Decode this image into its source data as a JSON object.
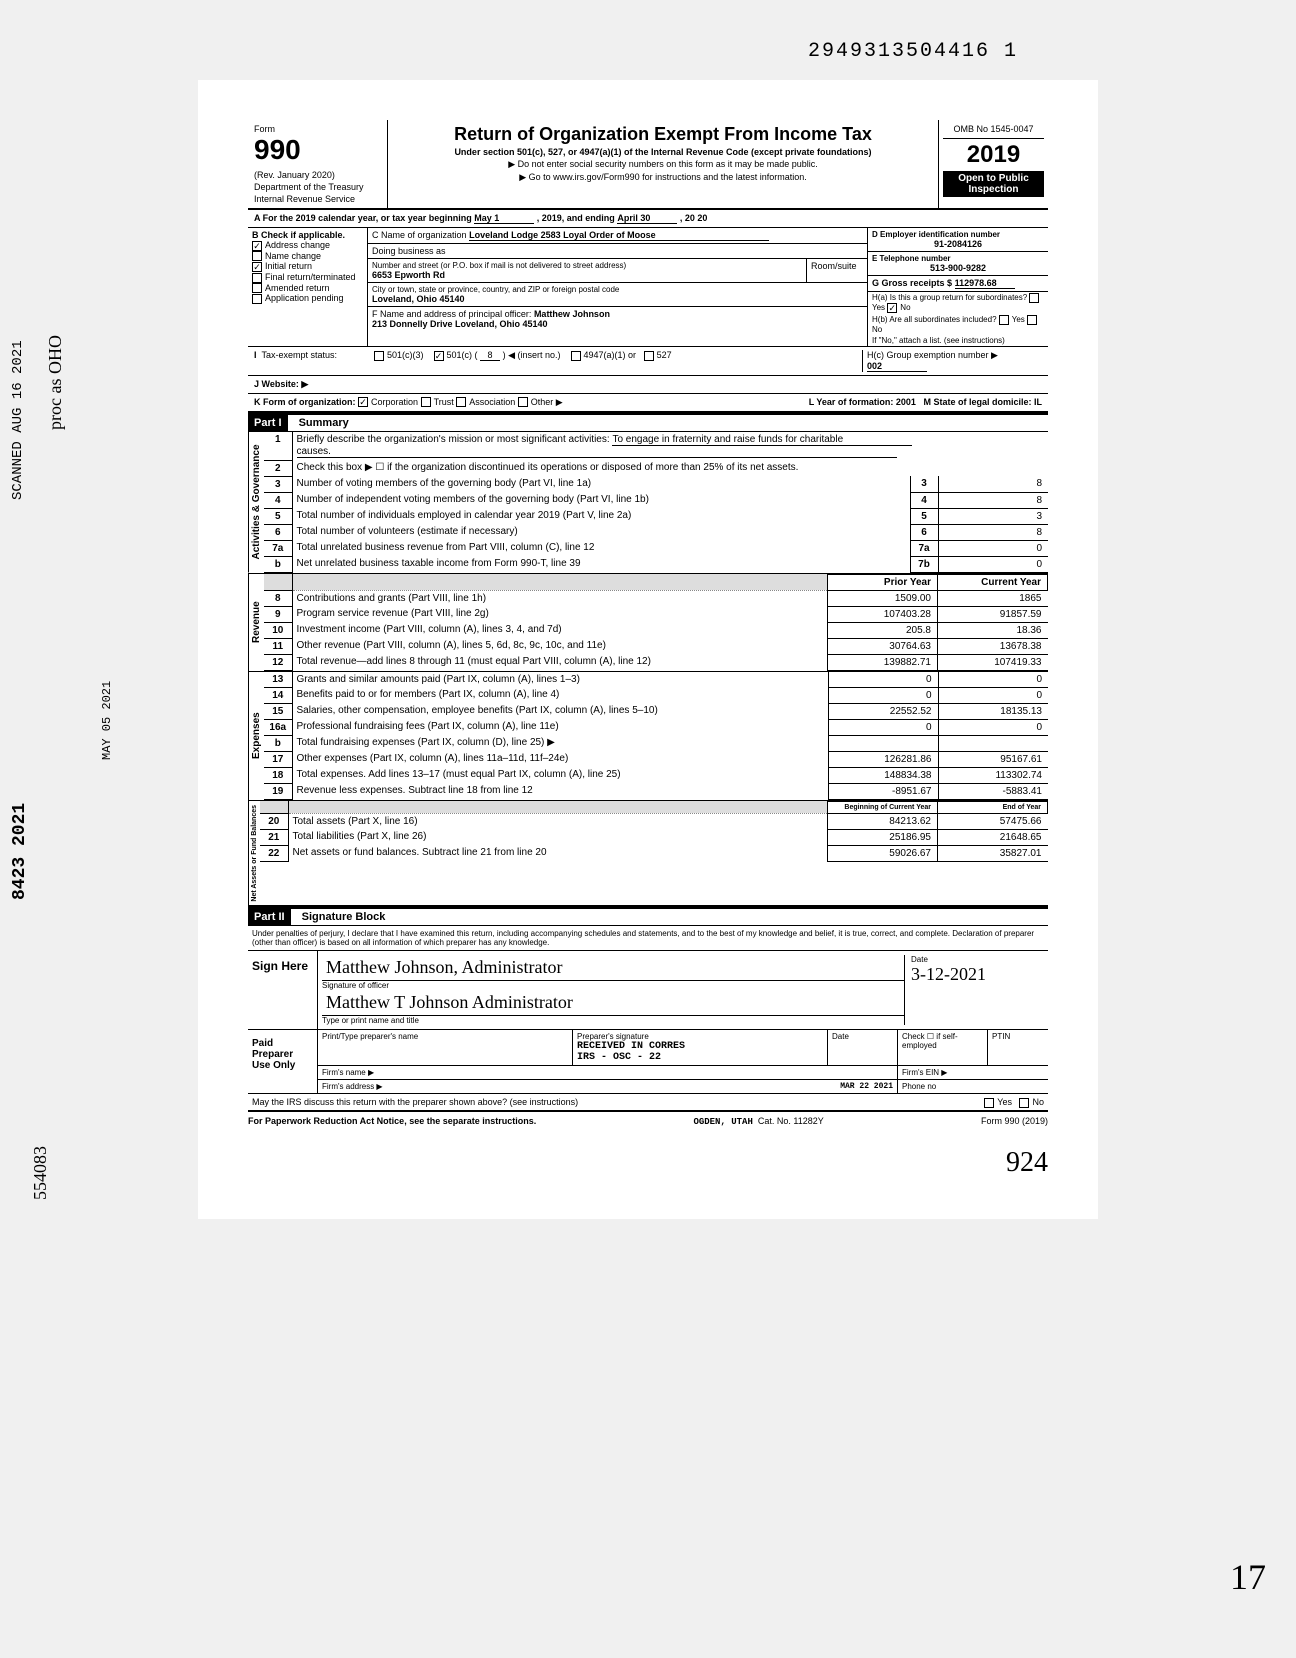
{
  "top_doc_number": "2949313504416 1",
  "form": {
    "number": "990",
    "rev": "(Rev. January 2020)",
    "dept": "Department of the Treasury",
    "irs": "Internal Revenue Service",
    "title": "Return of Organization Exempt From Income Tax",
    "subtitle1": "Under section 501(c), 527, or 4947(a)(1) of the Internal Revenue Code (except private foundations)",
    "subtitle2": "▶ Do not enter social security numbers on this form as it may be made public.",
    "subtitle3": "▶ Go to www.irs.gov/Form990 for instructions and the latest information.",
    "omb": "OMB No 1545-0047",
    "year": "2019",
    "open": "Open to Public",
    "inspection": "Inspection"
  },
  "lineA": {
    "prefix": "A  For the 2019 calendar year, or tax year beginning",
    "begin": "May 1",
    "mid": ", 2019, and ending",
    "end": "April 30",
    "suffix": ", 20 20"
  },
  "B": {
    "header": "B  Check if applicable.",
    "addr_change": "Address change",
    "name_change": "Name change",
    "initial": "Initial return",
    "final": "Final return/terminated",
    "amended": "Amended return",
    "app_pending": "Application pending"
  },
  "C": {
    "name_label": "C Name of organization",
    "name": "Loveland Lodge 2583 Loyal Order of Moose",
    "dba_label": "Doing business as",
    "addr_label": "Number and street (or P.O. box if mail is not delivered to street address)",
    "addr": "6653 Epworth Rd",
    "room_label": "Room/suite",
    "city_label": "City or town, state or province, country, and ZIP or foreign postal code",
    "city": "Loveland, Ohio 45140",
    "officer_label": "F Name and address of principal officer:",
    "officer": "Matthew Johnson",
    "officer_addr": "213 Donnelly Drive  Loveland, Ohio  45140"
  },
  "D": {
    "label": "D Employer identification number",
    "value": "91-2084126"
  },
  "E": {
    "label": "E Telephone number",
    "value": "513-900-9282"
  },
  "G": {
    "label": "G Gross receipts $",
    "value": "112978.68"
  },
  "H": {
    "a": "H(a) Is this a group return for subordinates?",
    "b": "H(b) Are all subordinates included?",
    "note": "If \"No,\" attach a list. (see instructions)",
    "c": "H(c) Group exemption number ▶",
    "c_val": "002",
    "yes": "Yes",
    "no": "No"
  },
  "I": {
    "label": "Tax-exempt status:",
    "c3": "501(c)(3)",
    "c": "501(c) (",
    "c_num": "8",
    "c_suffix": ") ◀ (insert no.)",
    "a1": "4947(a)(1) or",
    "527": "527"
  },
  "J": {
    "label": "J    Website: ▶"
  },
  "K": {
    "label": "K    Form of organization:",
    "corp": "Corporation",
    "trust": "Trust",
    "assoc": "Association",
    "other": "Other ▶",
    "year_label": "L Year of formation:",
    "year": "2001",
    "state_label": "M State of legal domicile:",
    "state": "IL"
  },
  "part1": {
    "header": "Part I",
    "title": "Summary",
    "line1_label": "Briefly describe the organization's mission or most significant activities:",
    "line1_text": "To engage in fraternity and raise funds for charitable",
    "line1_text2": "causes.",
    "line2": "Check this box ▶ ☐ if the organization discontinued its operations or disposed of more than 25% of its net assets.",
    "sections": {
      "gov": "Activities & Governance",
      "rev": "Revenue",
      "exp": "Expenses",
      "net": "Net Assets or Fund Balances"
    },
    "rows": [
      {
        "n": "3",
        "desc": "Number of voting members of the governing body (Part VI, line 1a)",
        "ref": "3",
        "cur": "8"
      },
      {
        "n": "4",
        "desc": "Number of independent voting members of the governing body (Part VI, line 1b)",
        "ref": "4",
        "cur": "8"
      },
      {
        "n": "5",
        "desc": "Total number of individuals employed in calendar year 2019 (Part V, line 2a)",
        "ref": "5",
        "cur": "3"
      },
      {
        "n": "6",
        "desc": "Total number of volunteers (estimate if necessary)",
        "ref": "6",
        "cur": "8"
      },
      {
        "n": "7a",
        "desc": "Total unrelated business revenue from Part VIII, column (C), line 12",
        "ref": "7a",
        "cur": "0"
      },
      {
        "n": "b",
        "desc": "Net unrelated business taxable income from Form 990-T, line 39",
        "ref": "7b",
        "cur": "0"
      }
    ],
    "prior_label": "Prior Year",
    "current_label": "Current Year",
    "rev_rows": [
      {
        "n": "8",
        "desc": "Contributions and grants (Part VIII, line 1h)",
        "prior": "1509.00",
        "cur": "1865"
      },
      {
        "n": "9",
        "desc": "Program service revenue (Part VIII, line 2g)",
        "prior": "107403.28",
        "cur": "91857.59"
      },
      {
        "n": "10",
        "desc": "Investment income (Part VIII, column (A), lines 3, 4, and 7d)",
        "prior": "205.8",
        "cur": "18.36"
      },
      {
        "n": "11",
        "desc": "Other revenue (Part VIII, column (A), lines 5, 6d, 8c, 9c, 10c, and 11e)",
        "prior": "30764.63",
        "cur": "13678.38"
      },
      {
        "n": "12",
        "desc": "Total revenue—add lines 8 through 11 (must equal Part VIII, column (A), line 12)",
        "prior": "139882.71",
        "cur": "107419.33"
      }
    ],
    "exp_rows": [
      {
        "n": "13",
        "desc": "Grants and similar amounts paid (Part IX, column (A), lines 1–3)",
        "prior": "0",
        "cur": "0"
      },
      {
        "n": "14",
        "desc": "Benefits paid to or for members (Part IX, column (A), line 4)",
        "prior": "0",
        "cur": "0"
      },
      {
        "n": "15",
        "desc": "Salaries, other compensation, employee benefits (Part IX, column (A), lines 5–10)",
        "prior": "22552.52",
        "cur": "18135.13"
      },
      {
        "n": "16a",
        "desc": "Professional fundraising fees (Part IX, column (A),  line 11e)",
        "prior": "0",
        "cur": "0"
      },
      {
        "n": "b",
        "desc": "Total fundraising expenses (Part IX, column (D), line 25) ▶",
        "prior": "",
        "cur": ""
      },
      {
        "n": "17",
        "desc": "Other expenses (Part IX, column (A), lines 11a–11d, 11f–24e)",
        "prior": "126281.86",
        "cur": "95167.61"
      },
      {
        "n": "18",
        "desc": "Total expenses. Add lines 13–17 (must equal Part IX, column (A), line 25)",
        "prior": "148834.38",
        "cur": "113302.74"
      },
      {
        "n": "19",
        "desc": "Revenue less expenses. Subtract line 18 from line 12",
        "prior": "-8951.67",
        "cur": "-5883.41"
      }
    ],
    "begin_label": "Beginning of Current Year",
    "end_label": "End of Year",
    "net_rows": [
      {
        "n": "20",
        "desc": "Total assets (Part X, line 16)",
        "prior": "84213.62",
        "cur": "57475.66"
      },
      {
        "n": "21",
        "desc": "Total liabilities (Part X, line 26)",
        "prior": "25186.95",
        "cur": "21648.65"
      },
      {
        "n": "22",
        "desc": "Net assets or fund balances. Subtract line 21 from line 20",
        "prior": "59026.67",
        "cur": "35827.01"
      }
    ]
  },
  "part2": {
    "header": "Part II",
    "title": "Signature Block",
    "jurat": "Under penalties of perjury, I declare that I have examined this return, including accompanying schedules and statements, and to the best of my knowledge and belief, it is true, correct, and complete. Declaration of preparer (other than officer) is based on all information of which preparer has any knowledge.",
    "sign_here": "Sign Here",
    "sig_officer": "Signature of officer",
    "sig_name": "Matthew T Johnson  Administrator",
    "sig_scrawl": "Matthew Johnson, Administrator",
    "type_name": "Type or print name and title",
    "date_label": "Date",
    "date": "3-12-2021",
    "paid": "Paid Preparer Use Only",
    "prep_name": "Print/Type preparer's name",
    "prep_sig": "Preparer's signature",
    "prep_date": "Date",
    "check_self": "Check ☐ if self-employed",
    "ptin": "PTIN",
    "firm_name": "Firm's name ▶",
    "firm_ein": "Firm's EIN ▶",
    "firm_addr": "Firm's address ▶",
    "phone": "Phone no",
    "may_irs": "May the IRS discuss this return with the preparer shown above? (see instructions)",
    "received": "RECEIVED IN CORRES",
    "received2": "IRS - OSC - 22",
    "received_date": "MAR 22 2021"
  },
  "footer": {
    "paperwork": "For Paperwork Reduction Act Notice, see the separate instructions.",
    "cat": "Cat. No. 11282Y",
    "ogden": "OGDEN, UTAH",
    "form": "Form 990 (2019)"
  },
  "margins": {
    "scanned": "SCANNED AUG 16 2021",
    "proc": "proc as OHO",
    "left_num": "8423 2021",
    "bottom_left": "554083",
    "date_side": "MAY 05 2021",
    "bottom_hand": "924",
    "right_num": "17"
  }
}
